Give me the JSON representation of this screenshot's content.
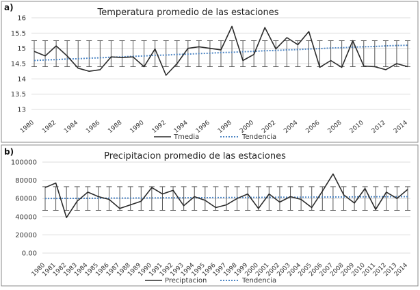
{
  "chart_data": [
    {
      "type": "line",
      "panel_label": "a)",
      "title": "Temperatura promedio de las estaciones",
      "x": [
        1980,
        1981,
        1982,
        1983,
        1984,
        1985,
        1986,
        1987,
        1988,
        1989,
        1990,
        1991,
        1992,
        1993,
        1994,
        1995,
        1996,
        1997,
        1998,
        1999,
        2000,
        2001,
        2002,
        2003,
        2004,
        2005,
        2006,
        2007,
        2008,
        2009,
        2010,
        2011,
        2012,
        2013,
        2014
      ],
      "x_tick_labels": [
        "1980",
        "1982",
        "1984",
        "1986",
        "1988",
        "1990",
        "1992",
        "1994",
        "1996",
        "1998",
        "2000",
        "2002",
        "2004",
        "2006",
        "2008",
        "2010",
        "2012",
        "2014"
      ],
      "ylim": [
        13,
        16
      ],
      "y_ticks": [
        13,
        13.5,
        14,
        14.5,
        15,
        15.5,
        16
      ],
      "y_tick_labels": [
        "13",
        "13.5",
        "14",
        "14.5",
        "15",
        "15.5",
        "16"
      ],
      "grid": true,
      "legend_position": "bottom",
      "error_bar": {
        "lower": 14.4,
        "upper": 15.25
      },
      "series": [
        {
          "name": "Tmedia",
          "style": "solid",
          "color": "#2a2a2a",
          "values": [
            14.9,
            14.75,
            15.08,
            14.75,
            14.35,
            14.25,
            14.3,
            14.72,
            14.7,
            14.72,
            14.4,
            14.98,
            14.12,
            14.5,
            15.0,
            15.05,
            15.0,
            14.95,
            15.72,
            14.6,
            14.8,
            15.68,
            14.98,
            15.35,
            15.12,
            15.55,
            14.38,
            14.6,
            14.38,
            15.25,
            14.42,
            14.4,
            14.3,
            14.5,
            14.4
          ]
        },
        {
          "name": "Tendencia",
          "style": "dotted",
          "color": "#4e86c4",
          "values": [
            14.6,
            14.62,
            14.63,
            14.65,
            14.66,
            14.68,
            14.69,
            14.71,
            14.72,
            14.74,
            14.75,
            14.77,
            14.78,
            14.8,
            14.81,
            14.83,
            14.84,
            14.86,
            14.87,
            14.89,
            14.9,
            14.92,
            14.93,
            14.95,
            14.96,
            14.98,
            14.99,
            15.01,
            15.02,
            15.04,
            15.05,
            15.06,
            15.08,
            15.09,
            15.1
          ]
        }
      ]
    },
    {
      "type": "line",
      "panel_label": "b)",
      "title": "Precipitacion promedio de las estaciones",
      "x": [
        1980,
        1981,
        1982,
        1983,
        1984,
        1985,
        1986,
        1987,
        1988,
        1989,
        1990,
        1991,
        1992,
        1993,
        1994,
        1995,
        1996,
        1997,
        1998,
        1999,
        2000,
        2001,
        2002,
        2003,
        2004,
        2005,
        2006,
        2007,
        2008,
        2009,
        2010,
        2011,
        2012,
        2013,
        2014
      ],
      "x_tick_labels": [
        "1980",
        "1981",
        "1982",
        "1983",
        "1984",
        "1985",
        "1986",
        "1987",
        "1988",
        "1989",
        "1990",
        "1991",
        "1992",
        "1993",
        "1994",
        "1995",
        "1996",
        "1997",
        "1998",
        "1999",
        "2000",
        "2001",
        "2002",
        "2003",
        "2004",
        "2005",
        "2006",
        "2007",
        "2008",
        "2009",
        "2010",
        "2011",
        "2012",
        "2013",
        "2014"
      ],
      "ylim": [
        0,
        100000
      ],
      "y_ticks": [
        0,
        20000,
        40000,
        60000,
        80000,
        100000
      ],
      "y_tick_labels": [
        "0.00",
        "20000",
        "40000",
        "60000",
        "80000",
        "100000"
      ],
      "grid": true,
      "legend_position": "bottom",
      "error_bar": {
        "lower": 47000,
        "upper": 73000
      },
      "series": [
        {
          "name": "Preciptacion",
          "style": "solid",
          "color": "#2a2a2a",
          "values": [
            72000,
            77000,
            39000,
            57000,
            67000,
            62000,
            59000,
            49000,
            53000,
            57000,
            72000,
            65000,
            69000,
            52000,
            62000,
            58000,
            50000,
            53000,
            60000,
            65000,
            49000,
            65000,
            56000,
            62000,
            59000,
            50000,
            68000,
            87000,
            64000,
            55000,
            71000,
            48000,
            67000,
            60000,
            70000
          ]
        },
        {
          "name": "Tendencia",
          "style": "dotted",
          "color": "#4e86c4",
          "values": [
            60000,
            60060,
            60120,
            60180,
            60240,
            60300,
            60360,
            60420,
            60480,
            60540,
            60600,
            60660,
            60720,
            60780,
            60840,
            60900,
            60960,
            61020,
            61080,
            61140,
            61200,
            61260,
            61320,
            61380,
            61440,
            61500,
            61560,
            61620,
            61680,
            61740,
            61800,
            61860,
            61920,
            61980,
            62040
          ]
        }
      ]
    }
  ]
}
